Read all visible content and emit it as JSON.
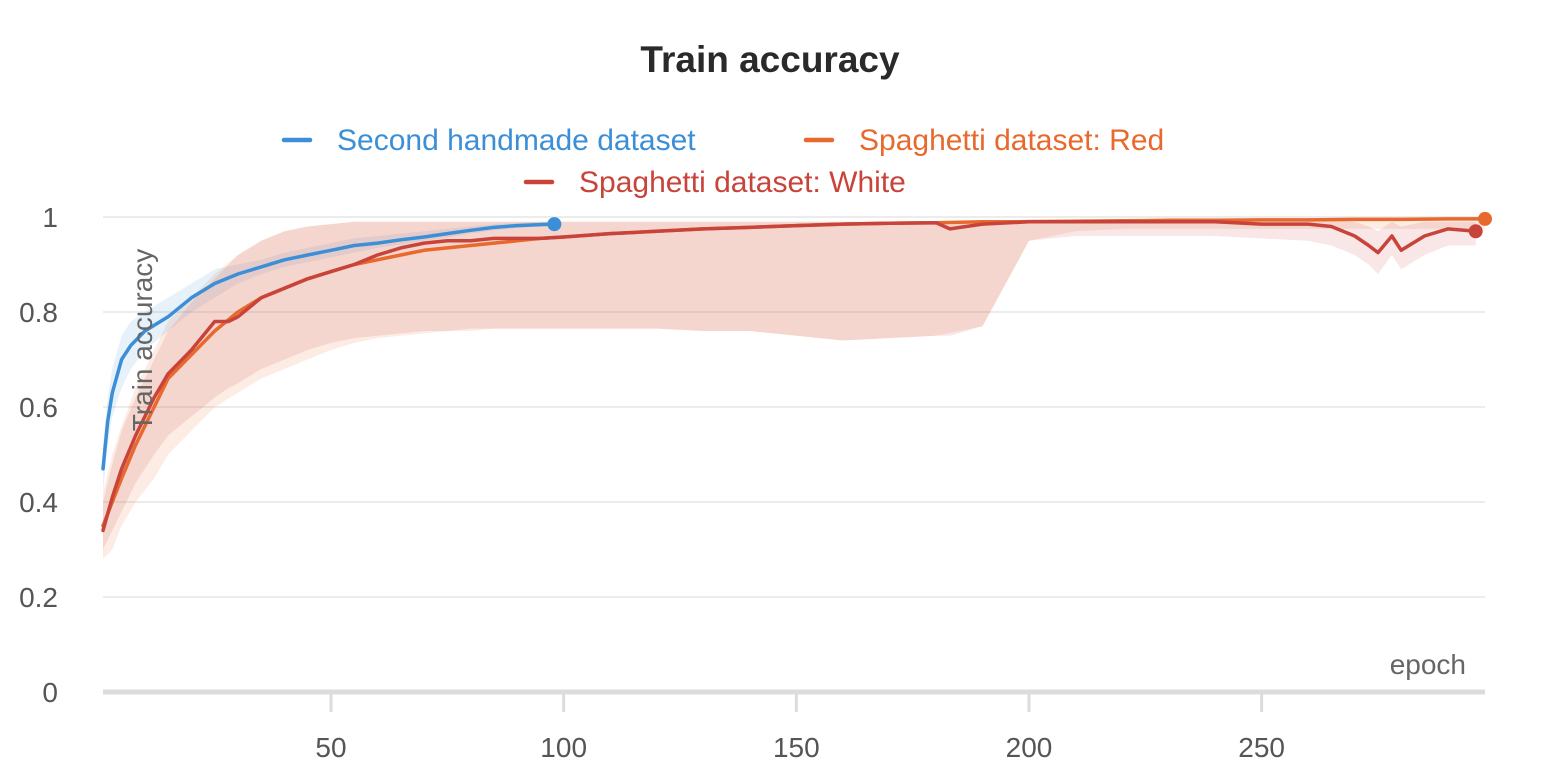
{
  "chart_data": {
    "type": "line",
    "title": "Train accuracy",
    "xlabel": "epoch",
    "ylabel": "Train accuracy",
    "xlim": [
      1,
      298
    ],
    "ylim": [
      0,
      1
    ],
    "x_ticks": [
      50,
      100,
      150,
      200,
      250
    ],
    "x_tick_labels": [
      "50",
      "100",
      "150",
      "200",
      "250"
    ],
    "y_ticks": [
      0,
      0.2,
      0.4,
      0.6,
      0.8,
      1
    ],
    "y_tick_labels": [
      "0",
      "0.2",
      "0.4",
      "0.6",
      "0.8",
      "1"
    ],
    "grid": true,
    "legend_position": "top-center",
    "series": [
      {
        "name": "Second handmade dataset",
        "color": "#3c8fd6",
        "x": [
          1,
          2,
          3,
          5,
          7,
          10,
          15,
          20,
          25,
          30,
          35,
          40,
          45,
          50,
          55,
          60,
          65,
          70,
          75,
          80,
          85,
          90,
          95,
          98
        ],
        "values": [
          0.47,
          0.57,
          0.63,
          0.7,
          0.73,
          0.76,
          0.79,
          0.83,
          0.86,
          0.88,
          0.895,
          0.91,
          0.92,
          0.93,
          0.94,
          0.945,
          0.952,
          0.958,
          0.965,
          0.972,
          0.978,
          0.982,
          0.984,
          0.985
        ],
        "band_lower": [
          0.42,
          0.52,
          0.58,
          0.64,
          0.68,
          0.72,
          0.76,
          0.8,
          0.83,
          0.86,
          0.88,
          0.895,
          0.905,
          0.915,
          0.925,
          0.935,
          0.942,
          0.95,
          0.957,
          0.965,
          0.972,
          0.977,
          0.98,
          0.981
        ],
        "band_upper": [
          0.52,
          0.62,
          0.68,
          0.75,
          0.78,
          0.8,
          0.83,
          0.86,
          0.89,
          0.9,
          0.91,
          0.925,
          0.935,
          0.945,
          0.955,
          0.96,
          0.965,
          0.97,
          0.975,
          0.98,
          0.985,
          0.988,
          0.99,
          0.99
        ]
      },
      {
        "name": "Spaghetti dataset: Red",
        "color": "#e8692d",
        "x": [
          1,
          3,
          5,
          8,
          12,
          15,
          20,
          25,
          30,
          35,
          40,
          45,
          50,
          55,
          60,
          65,
          70,
          75,
          80,
          85,
          90,
          95,
          100,
          110,
          120,
          130,
          140,
          150,
          160,
          170,
          180,
          190,
          200,
          210,
          220,
          230,
          240,
          250,
          260,
          270,
          280,
          290,
          298
        ],
        "values": [
          0.35,
          0.4,
          0.45,
          0.52,
          0.6,
          0.66,
          0.71,
          0.76,
          0.8,
          0.83,
          0.85,
          0.87,
          0.885,
          0.9,
          0.91,
          0.92,
          0.93,
          0.935,
          0.94,
          0.945,
          0.95,
          0.955,
          0.958,
          0.965,
          0.97,
          0.975,
          0.978,
          0.982,
          0.985,
          0.987,
          0.988,
          0.99,
          0.99,
          0.991,
          0.992,
          0.993,
          0.993,
          0.994,
          0.994,
          0.995,
          0.995,
          0.996,
          0.996
        ],
        "band_lower": [
          0.28,
          0.3,
          0.35,
          0.4,
          0.45,
          0.5,
          0.55,
          0.6,
          0.63,
          0.66,
          0.68,
          0.7,
          0.72,
          0.735,
          0.745,
          0.75,
          0.755,
          0.76,
          0.76,
          0.765,
          0.765,
          0.765,
          0.765,
          0.765,
          0.765,
          0.76,
          0.76,
          0.75,
          0.74,
          0.745,
          0.75,
          0.77,
          0.95,
          0.97,
          0.975,
          0.975,
          0.975,
          0.975,
          0.975,
          0.975,
          0.975,
          0.975,
          0.975
        ],
        "band_upper": [
          0.42,
          0.5,
          0.56,
          0.64,
          0.72,
          0.78,
          0.83,
          0.88,
          0.92,
          0.95,
          0.97,
          0.98,
          0.985,
          0.99,
          0.99,
          0.99,
          0.99,
          0.99,
          0.99,
          0.99,
          0.99,
          0.99,
          0.99,
          0.99,
          0.99,
          0.99,
          0.99,
          0.99,
          0.99,
          0.99,
          0.99,
          0.99,
          0.995,
          0.995,
          0.995,
          0.995,
          0.995,
          0.995,
          0.995,
          0.995,
          0.995,
          0.995,
          0.995
        ]
      },
      {
        "name": "Spaghetti dataset: White",
        "color": "#c8443a",
        "x": [
          1,
          3,
          5,
          8,
          12,
          15,
          20,
          25,
          28,
          30,
          35,
          40,
          45,
          50,
          55,
          60,
          65,
          70,
          75,
          80,
          85,
          90,
          95,
          100,
          110,
          120,
          130,
          140,
          150,
          160,
          170,
          180,
          183,
          190,
          200,
          210,
          220,
          230,
          240,
          250,
          260,
          265,
          270,
          273,
          275,
          278,
          280,
          285,
          290,
          296
        ],
        "values": [
          0.34,
          0.41,
          0.47,
          0.54,
          0.62,
          0.67,
          0.72,
          0.78,
          0.78,
          0.79,
          0.83,
          0.85,
          0.87,
          0.885,
          0.9,
          0.92,
          0.935,
          0.945,
          0.95,
          0.95,
          0.955,
          0.955,
          0.955,
          0.958,
          0.965,
          0.97,
          0.975,
          0.978,
          0.982,
          0.985,
          0.987,
          0.988,
          0.975,
          0.985,
          0.99,
          0.99,
          0.99,
          0.99,
          0.99,
          0.985,
          0.985,
          0.98,
          0.96,
          0.94,
          0.925,
          0.96,
          0.93,
          0.96,
          0.975,
          0.97
        ],
        "band_lower": [
          0.3,
          0.34,
          0.38,
          0.44,
          0.5,
          0.54,
          0.58,
          0.62,
          0.64,
          0.65,
          0.68,
          0.7,
          0.72,
          0.735,
          0.745,
          0.75,
          0.755,
          0.76,
          0.76,
          0.765,
          0.765,
          0.765,
          0.765,
          0.765,
          0.765,
          0.765,
          0.76,
          0.76,
          0.75,
          0.74,
          0.745,
          0.75,
          0.75,
          0.77,
          0.95,
          0.96,
          0.96,
          0.96,
          0.96,
          0.955,
          0.95,
          0.94,
          0.92,
          0.9,
          0.88,
          0.92,
          0.89,
          0.92,
          0.94,
          0.94
        ],
        "band_upper": [
          0.4,
          0.48,
          0.55,
          0.62,
          0.7,
          0.76,
          0.82,
          0.87,
          0.9,
          0.92,
          0.95,
          0.97,
          0.98,
          0.985,
          0.99,
          0.99,
          0.99,
          0.99,
          0.99,
          0.99,
          0.99,
          0.99,
          0.99,
          0.99,
          0.99,
          0.99,
          0.99,
          0.99,
          0.99,
          0.99,
          0.99,
          0.99,
          0.99,
          0.99,
          0.995,
          0.995,
          0.995,
          0.995,
          0.995,
          0.995,
          0.995,
          0.995,
          0.99,
          0.98,
          0.97,
          0.99,
          0.98,
          0.99,
          0.99,
          0.99
        ]
      }
    ]
  }
}
